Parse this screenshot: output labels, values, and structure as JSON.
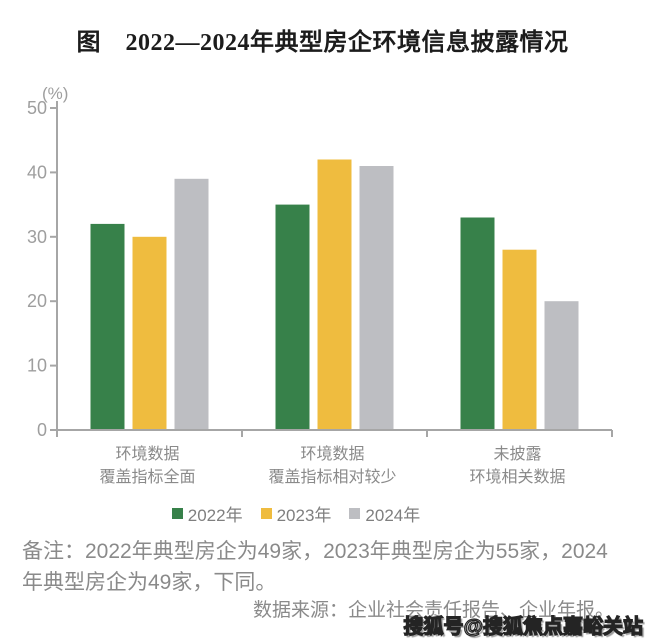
{
  "title": "图　2022—2024年典型房企环境信息披露情况",
  "chart_data": {
    "type": "bar",
    "title": "2022—2024年典型房企环境信息披露情况",
    "unit_label": "(%)",
    "ylabel": "(%)",
    "xlabel": "",
    "ylim": [
      0,
      50
    ],
    "yticks": [
      0,
      10,
      20,
      30,
      40,
      50
    ],
    "grid": false,
    "legend_position": "bottom",
    "axis_color": "#a6a6a6",
    "tick_label_color": "#9e9e9e",
    "categories": [
      {
        "line1": "环境数据",
        "line2": "覆盖指标全面"
      },
      {
        "line1": "环境数据",
        "line2": "覆盖指标相对较少"
      },
      {
        "line1": "未披露",
        "line2": "环境相关数据"
      }
    ],
    "series": [
      {
        "name": "2022年",
        "color": "#37814A",
        "values": [
          32,
          35,
          33
        ]
      },
      {
        "name": "2023年",
        "color": "#EFBC3F",
        "values": [
          30,
          42,
          28
        ]
      },
      {
        "name": "2024年",
        "color": "#BDBEC2",
        "values": [
          39,
          41,
          20
        ]
      }
    ]
  },
  "note": "备注：2022年典型房企为49家，2023年典型房企为55家，2024年典型房企为49家，下同。",
  "source": "数据来源：企业社会责任报告、企业年报。",
  "watermark": "搜狐号@搜狐焦点嘉峪关站"
}
